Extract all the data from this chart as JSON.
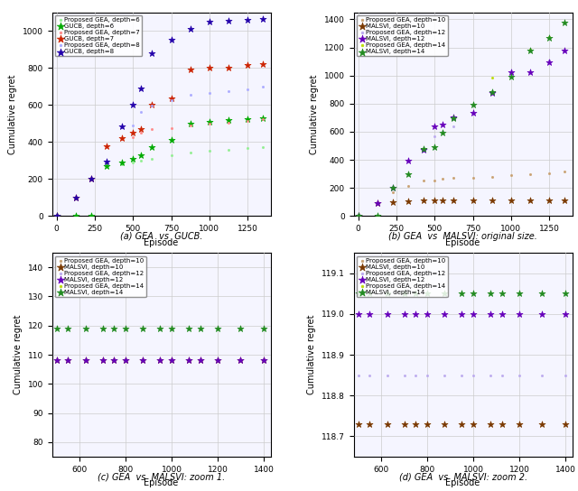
{
  "subplot_a": {
    "xlabel": "Episode",
    "ylabel": "Cumulative regret",
    "caption": "(a) GEA  vs  GUCB.",
    "ylim": [
      0,
      1100
    ],
    "xlim": [
      -30,
      1400
    ],
    "xticks": [
      0,
      250,
      500,
      750,
      1000,
      1250
    ],
    "series": [
      {
        "label": "Proposed GEA, depth=6",
        "color": "#90ee90",
        "marker": ".",
        "x": [
          1,
          125,
          225,
          325,
          425,
          500,
          550,
          625,
          750,
          875,
          1000,
          1125,
          1250,
          1350
        ],
        "y": [
          0,
          0,
          0,
          270,
          280,
          290,
          300,
          310,
          330,
          345,
          355,
          360,
          365,
          370
        ]
      },
      {
        "label": "GUCB, depth=6",
        "color": "#00aa00",
        "marker": "*",
        "x": [
          1,
          125,
          225,
          325,
          425,
          500,
          550,
          625,
          750,
          875,
          1000,
          1125,
          1250,
          1350
        ],
        "y": [
          0,
          0,
          0,
          270,
          290,
          310,
          330,
          370,
          410,
          500,
          510,
          520,
          525,
          530
        ]
      },
      {
        "label": "Proposed GEA, depth=7",
        "color": "#ff8888",
        "marker": ".",
        "x": [
          1,
          125,
          225,
          325,
          425,
          500,
          550,
          625,
          750,
          875,
          1000,
          1125,
          1250,
          1350
        ],
        "y": [
          0,
          100,
          200,
          375,
          415,
          425,
          450,
          470,
          475,
          490,
          500,
          505,
          515,
          525
        ]
      },
      {
        "label": "GUCB, depth=7",
        "color": "#cc2200",
        "marker": "*",
        "x": [
          1,
          125,
          225,
          325,
          425,
          500,
          550,
          625,
          750,
          875,
          1000,
          1125,
          1250,
          1350
        ],
        "y": [
          0,
          100,
          200,
          375,
          420,
          450,
          470,
          600,
          635,
          790,
          800,
          800,
          815,
          820
        ]
      },
      {
        "label": "Proposed GEA, depth=8",
        "color": "#aaaaff",
        "marker": ".",
        "x": [
          1,
          125,
          225,
          325,
          425,
          500,
          550,
          625,
          750,
          875,
          1000,
          1125,
          1250,
          1350
        ],
        "y": [
          0,
          100,
          200,
          295,
          480,
          490,
          560,
          595,
          625,
          655,
          665,
          675,
          685,
          700
        ]
      },
      {
        "label": "GUCB, depth=8",
        "color": "#2200aa",
        "marker": "*",
        "x": [
          1,
          125,
          225,
          325,
          425,
          500,
          550,
          625,
          750,
          875,
          1000,
          1125,
          1250,
          1350
        ],
        "y": [
          0,
          100,
          200,
          295,
          485,
          600,
          690,
          880,
          950,
          1010,
          1050,
          1055,
          1060,
          1065
        ]
      }
    ]
  },
  "subplot_b": {
    "xlabel": "Episode",
    "ylabel": "Cumulative regret",
    "caption": "(b) GEA  vs  MALSVI: original size.",
    "ylim": [
      0,
      1450
    ],
    "xlim": [
      -30,
      1400
    ],
    "xticks": [
      0,
      250,
      500,
      750,
      1000,
      1250
    ],
    "series": [
      {
        "label": "Proposed GEA, depth=10",
        "color": "#c8a070",
        "marker": ".",
        "x": [
          1,
          125,
          225,
          325,
          425,
          500,
          550,
          625,
          750,
          875,
          1000,
          1125,
          1250,
          1350
        ],
        "y": [
          0,
          90,
          170,
          215,
          250,
          255,
          265,
          270,
          275,
          280,
          290,
          295,
          305,
          315
        ]
      },
      {
        "label": "MALSVI, depth=10",
        "color": "#7a3800",
        "marker": "*",
        "x": [
          1,
          125,
          225,
          325,
          425,
          500,
          550,
          625,
          750,
          875,
          1000,
          1125,
          1250,
          1350
        ],
        "y": [
          0,
          90,
          100,
          105,
          110,
          110,
          110,
          110,
          110,
          110,
          110,
          110,
          110,
          110
        ]
      },
      {
        "label": "Proposed GEA, depth=12",
        "color": "#bbaaee",
        "marker": ".",
        "x": [
          1,
          125,
          225,
          325,
          425,
          500,
          550,
          625,
          750,
          875,
          1000,
          1125,
          1250,
          1350
        ],
        "y": [
          0,
          90,
          200,
          395,
          465,
          565,
          600,
          640,
          730,
          875,
          1010,
          1025,
          1105,
          1175
        ]
      },
      {
        "label": "MALSVI, depth=12",
        "color": "#6600bb",
        "marker": "*",
        "x": [
          1,
          125,
          225,
          325,
          425,
          500,
          550,
          625,
          750,
          875,
          1000,
          1125,
          1250,
          1350
        ],
        "y": [
          0,
          90,
          200,
          395,
          470,
          640,
          650,
          700,
          735,
          875,
          1025,
          1025,
          1095,
          1180
        ]
      },
      {
        "label": "Proposed GEA, depth=14",
        "color": "#bbdd00",
        "marker": ".",
        "x": [
          1,
          125,
          225,
          325,
          425,
          500,
          550,
          625,
          750,
          875,
          1000,
          1125,
          1250,
          1350
        ],
        "y": [
          0,
          0,
          200,
          295,
          475,
          490,
          595,
          695,
          795,
          985,
          990,
          1185,
          1275,
          1375
        ]
      },
      {
        "label": "MALSVI, depth=14",
        "color": "#228B22",
        "marker": "*",
        "x": [
          1,
          125,
          225,
          325,
          425,
          500,
          550,
          625,
          750,
          875,
          1000,
          1125,
          1250,
          1350
        ],
        "y": [
          0,
          0,
          200,
          295,
          475,
          490,
          595,
          695,
          795,
          880,
          990,
          1180,
          1265,
          1375
        ]
      }
    ]
  },
  "subplot_c": {
    "xlabel": "Episode",
    "ylabel": "Cumulative regret",
    "caption": "(c) GEA  vs  MALSVI: zoom 1.",
    "ylim": [
      75,
      145
    ],
    "xlim": [
      480,
      1430
    ],
    "xticks": [
      600,
      800,
      1000,
      1200,
      1400
    ],
    "series": [
      {
        "label": "Proposed GEA, depth=10",
        "color": "#c8a070",
        "marker": ".",
        "x": [
          500,
          550,
          625,
          700,
          750,
          800,
          875,
          950,
          1000,
          1075,
          1125,
          1200,
          1300,
          1400
        ],
        "y": [
          108,
          108,
          108,
          108,
          108,
          108,
          108,
          108,
          108,
          108,
          108,
          108,
          108,
          108
        ]
      },
      {
        "label": "MALSVI, depth=10",
        "color": "#7a3800",
        "marker": "*",
        "x": [
          500,
          550,
          625,
          700,
          750,
          800,
          875,
          950,
          1000,
          1075,
          1125,
          1200,
          1300,
          1400
        ],
        "y": [
          108,
          108,
          108,
          108,
          108,
          108,
          108,
          108,
          108,
          108,
          108,
          108,
          108,
          108
        ]
      },
      {
        "label": "Proposed GEA, depth=12",
        "color": "#bbaaee",
        "marker": ".",
        "x": [
          500,
          550,
          625,
          700,
          750,
          800,
          875,
          950,
          1000,
          1075,
          1125,
          1200,
          1300,
          1400
        ],
        "y": [
          108,
          108,
          108,
          108,
          108,
          108,
          108,
          108,
          108,
          108,
          108,
          108,
          108,
          108
        ]
      },
      {
        "label": "MALSVI, depth=12",
        "color": "#6600bb",
        "marker": "*",
        "x": [
          500,
          550,
          625,
          700,
          750,
          800,
          875,
          950,
          1000,
          1075,
          1125,
          1200,
          1300,
          1400
        ],
        "y": [
          108,
          108,
          108,
          108,
          108,
          108,
          108,
          108,
          108,
          108,
          108,
          108,
          108,
          108
        ]
      },
      {
        "label": "Proposed GEA, depth=14",
        "color": "#bbdd00",
        "marker": ".",
        "x": [
          500,
          550,
          625,
          700,
          750,
          800,
          875,
          950,
          1000,
          1075,
          1125,
          1200,
          1300,
          1400
        ],
        "y": [
          119,
          119,
          119,
          119,
          119,
          119,
          119,
          119,
          119,
          119,
          119,
          119,
          119,
          119
        ]
      },
      {
        "label": "MALSVI, depth=14",
        "color": "#228B22",
        "marker": "*",
        "x": [
          500,
          550,
          625,
          700,
          750,
          800,
          875,
          950,
          1000,
          1075,
          1125,
          1200,
          1300,
          1400
        ],
        "y": [
          119,
          119,
          119,
          119,
          119,
          119,
          119,
          119,
          119,
          119,
          119,
          119,
          119,
          119
        ]
      }
    ]
  },
  "subplot_d": {
    "xlabel": "Episode",
    "ylabel": "Cumulative regret",
    "caption": "(d) GEA  vs  MALSVI: zoom 2.",
    "ylim": [
      118.65,
      119.15
    ],
    "xlim": [
      480,
      1430
    ],
    "xticks": [
      600,
      800,
      1000,
      1200,
      1400
    ],
    "yticks": [
      118.7,
      118.8,
      118.9,
      119.0,
      119.1
    ],
    "series": [
      {
        "label": "Proposed GEA, depth=10",
        "color": "#c8a070",
        "marker": ".",
        "x": [
          500,
          550,
          625,
          700,
          750,
          800,
          875,
          950,
          1000,
          1075,
          1125,
          1200,
          1300,
          1400
        ],
        "y": [
          118.73,
          118.73,
          118.73,
          118.73,
          118.73,
          118.73,
          118.73,
          118.73,
          118.73,
          118.73,
          118.73,
          118.73,
          118.73,
          118.73
        ]
      },
      {
        "label": "MALSVI, depth=10",
        "color": "#7a3800",
        "marker": "*",
        "x": [
          500,
          550,
          625,
          700,
          750,
          800,
          875,
          950,
          1000,
          1075,
          1125,
          1200,
          1300,
          1400
        ],
        "y": [
          118.73,
          118.73,
          118.73,
          118.73,
          118.73,
          118.73,
          118.73,
          118.73,
          118.73,
          118.73,
          118.73,
          118.73,
          118.73,
          118.73
        ]
      },
      {
        "label": "Proposed GEA, depth=12",
        "color": "#bbaaee",
        "marker": ".",
        "x": [
          500,
          550,
          625,
          700,
          750,
          800,
          875,
          950,
          1000,
          1075,
          1125,
          1200,
          1300,
          1400
        ],
        "y": [
          118.85,
          118.85,
          118.85,
          118.85,
          118.85,
          118.85,
          118.85,
          118.85,
          118.85,
          118.85,
          118.85,
          118.85,
          118.85,
          118.85
        ]
      },
      {
        "label": "MALSVI, depth=12",
        "color": "#6600bb",
        "marker": "*",
        "x": [
          500,
          550,
          625,
          700,
          750,
          800,
          875,
          950,
          1000,
          1075,
          1125,
          1200,
          1300,
          1400
        ],
        "y": [
          119.0,
          119.0,
          119.0,
          119.0,
          119.0,
          119.0,
          119.0,
          119.0,
          119.0,
          119.0,
          119.0,
          119.0,
          119.0,
          119.0
        ]
      },
      {
        "label": "Proposed GEA, depth=14",
        "color": "#bbdd00",
        "marker": ".",
        "x": [
          500,
          550,
          625,
          700,
          750,
          800,
          875,
          950,
          1000,
          1075,
          1125,
          1200,
          1300,
          1400
        ],
        "y": [
          119.05,
          119.05,
          119.05,
          119.05,
          119.05,
          119.05,
          119.05,
          119.05,
          119.05,
          119.05,
          119.05,
          119.05,
          119.05,
          119.05
        ]
      },
      {
        "label": "MALSVI, depth=14",
        "color": "#228B22",
        "marker": "*",
        "x": [
          500,
          550,
          625,
          700,
          750,
          800,
          875,
          950,
          1000,
          1075,
          1125,
          1200,
          1300,
          1400
        ],
        "y": [
          119.05,
          119.05,
          119.05,
          119.05,
          119.05,
          119.05,
          119.05,
          119.05,
          119.05,
          119.05,
          119.05,
          119.05,
          119.05,
          119.05
        ]
      }
    ]
  },
  "fig_background": "#ffffff",
  "ax_background": "#f5f5ff",
  "grid_color": "#cccccc"
}
